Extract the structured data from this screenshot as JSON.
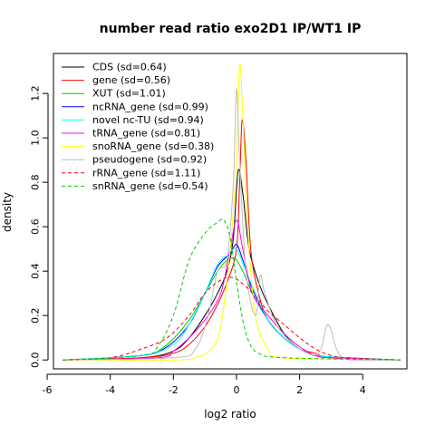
{
  "chart_data": {
    "type": "line",
    "title": "number read ratio exo2D1 IP/WT1 IP",
    "xlabel": "log2 ratio",
    "ylabel": "density",
    "xlim": [
      -5.8,
      5.4
    ],
    "ylim": [
      -0.04,
      1.38
    ],
    "x_ticks": [
      -6,
      -4,
      -2,
      0,
      2,
      4
    ],
    "y_ticks": [
      0.0,
      0.2,
      0.4,
      0.6,
      0.8,
      1.0,
      1.2
    ],
    "legend_position": "top-left",
    "series": [
      {
        "name": "CDS (sd=0.64)",
        "color": "#000000",
        "dash": false,
        "points": [
          [
            -5.5,
            0
          ],
          [
            -3,
            0.01
          ],
          [
            -2,
            0.04
          ],
          [
            -1.5,
            0.1
          ],
          [
            -1,
            0.2
          ],
          [
            -0.6,
            0.3
          ],
          [
            -0.3,
            0.4
          ],
          [
            -0.1,
            0.55
          ],
          [
            0.05,
            0.85
          ],
          [
            0.2,
            0.75
          ],
          [
            0.4,
            0.5
          ],
          [
            0.7,
            0.35
          ],
          [
            1,
            0.25
          ],
          [
            1.5,
            0.12
          ],
          [
            2,
            0.05
          ],
          [
            2.5,
            0.02
          ],
          [
            3,
            0.01
          ],
          [
            5.2,
            0
          ]
        ]
      },
      {
        "name": "gene (sd=0.56)",
        "color": "#ff0000",
        "dash": false,
        "points": [
          [
            -5.5,
            0
          ],
          [
            -3,
            0.01
          ],
          [
            -2,
            0.03
          ],
          [
            -1.5,
            0.07
          ],
          [
            -1,
            0.15
          ],
          [
            -0.6,
            0.25
          ],
          [
            -0.3,
            0.35
          ],
          [
            0,
            0.5
          ],
          [
            0.1,
            0.8
          ],
          [
            0.18,
            1.08
          ],
          [
            0.3,
            0.9
          ],
          [
            0.45,
            0.5
          ],
          [
            0.7,
            0.3
          ],
          [
            1,
            0.18
          ],
          [
            1.5,
            0.1
          ],
          [
            2,
            0.05
          ],
          [
            2.5,
            0.03
          ],
          [
            3,
            0.01
          ],
          [
            5.2,
            0
          ]
        ]
      },
      {
        "name": "XUT (sd=1.01)",
        "color": "#00cc00",
        "dash": false,
        "points": [
          [
            -5.5,
            0
          ],
          [
            -3,
            0.02
          ],
          [
            -2.2,
            0.07
          ],
          [
            -1.5,
            0.18
          ],
          [
            -1,
            0.3
          ],
          [
            -0.5,
            0.42
          ],
          [
            -0.1,
            0.46
          ],
          [
            0.2,
            0.4
          ],
          [
            0.5,
            0.3
          ],
          [
            1,
            0.18
          ],
          [
            1.5,
            0.1
          ],
          [
            2,
            0.05
          ],
          [
            2.5,
            0.02
          ],
          [
            3.5,
            0.01
          ],
          [
            5.2,
            0
          ]
        ]
      },
      {
        "name": "ncRNA_gene (sd=0.99)",
        "color": "#0000ff",
        "dash": false,
        "points": [
          [
            -5.5,
            0
          ],
          [
            -3,
            0.02
          ],
          [
            -2.2,
            0.06
          ],
          [
            -1.5,
            0.16
          ],
          [
            -1,
            0.3
          ],
          [
            -0.6,
            0.42
          ],
          [
            -0.2,
            0.48
          ],
          [
            0,
            0.52
          ],
          [
            0.2,
            0.45
          ],
          [
            0.5,
            0.32
          ],
          [
            1,
            0.18
          ],
          [
            1.5,
            0.1
          ],
          [
            2,
            0.05
          ],
          [
            2.5,
            0.02
          ],
          [
            3.5,
            0.01
          ],
          [
            5.2,
            0
          ]
        ]
      },
      {
        "name": "novel nc-TU (sd=0.94)",
        "color": "#00ffff",
        "dash": false,
        "points": [
          [
            -5.5,
            0
          ],
          [
            -3,
            0.02
          ],
          [
            -2,
            0.07
          ],
          [
            -1.5,
            0.16
          ],
          [
            -1,
            0.3
          ],
          [
            -0.6,
            0.43
          ],
          [
            -0.3,
            0.47
          ],
          [
            0,
            0.5
          ],
          [
            0.3,
            0.4
          ],
          [
            0.6,
            0.3
          ],
          [
            1,
            0.18
          ],
          [
            1.5,
            0.1
          ],
          [
            2,
            0.05
          ],
          [
            2.5,
            0.02
          ],
          [
            3.5,
            0.01
          ],
          [
            5.2,
            0
          ]
        ]
      },
      {
        "name": "tRNA_gene (sd=0.81)",
        "color": "#ff00ff",
        "dash": false,
        "points": [
          [
            -5.5,
            0
          ],
          [
            -2.5,
            0.01
          ],
          [
            -2,
            0.04
          ],
          [
            -1.5,
            0.1
          ],
          [
            -1,
            0.18
          ],
          [
            -0.5,
            0.3
          ],
          [
            -0.2,
            0.5
          ],
          [
            0,
            0.63
          ],
          [
            0.2,
            0.5
          ],
          [
            0.5,
            0.3
          ],
          [
            1,
            0.2
          ],
          [
            1.5,
            0.12
          ],
          [
            2,
            0.06
          ],
          [
            2.5,
            0.02
          ],
          [
            3,
            0.01
          ],
          [
            5.2,
            0
          ]
        ]
      },
      {
        "name": "snoRNA_gene (sd=0.38)",
        "color": "#ffff00",
        "dash": false,
        "points": [
          [
            -5.5,
            0
          ],
          [
            -2,
            0
          ],
          [
            -1.3,
            0.01
          ],
          [
            -0.8,
            0.05
          ],
          [
            -0.5,
            0.15
          ],
          [
            -0.2,
            0.5
          ],
          [
            0,
            0.9
          ],
          [
            0.1,
            1.33
          ],
          [
            0.2,
            1.1
          ],
          [
            0.35,
            0.6
          ],
          [
            0.6,
            0.2
          ],
          [
            1,
            0.05
          ],
          [
            1.5,
            0.01
          ],
          [
            5.2,
            0
          ]
        ]
      },
      {
        "name": "pseudogene (sd=0.92)",
        "color": "#bebebe",
        "dash": false,
        "points": [
          [
            -5.5,
            0
          ],
          [
            -2,
            0.01
          ],
          [
            -1.3,
            0.05
          ],
          [
            -0.9,
            0.2
          ],
          [
            -0.6,
            0.4
          ],
          [
            -0.3,
            0.45
          ],
          [
            -0.1,
            0.8
          ],
          [
            0,
            1.22
          ],
          [
            0.1,
            0.9
          ],
          [
            0.3,
            0.4
          ],
          [
            0.6,
            0.2
          ],
          [
            0.75,
            0.38
          ],
          [
            0.9,
            0.3
          ],
          [
            1.3,
            0.15
          ],
          [
            2,
            0.05
          ],
          [
            2.6,
            0.03
          ],
          [
            2.9,
            0.16
          ],
          [
            3.2,
            0.04
          ],
          [
            3.6,
            0
          ],
          [
            5.2,
            0
          ]
        ]
      },
      {
        "name": "rRNA_gene (sd=1.11)",
        "color": "#ff0000",
        "dash": true,
        "points": [
          [
            -5.5,
            0
          ],
          [
            -4,
            0.01
          ],
          [
            -3,
            0.05
          ],
          [
            -2.2,
            0.1
          ],
          [
            -1.5,
            0.2
          ],
          [
            -1,
            0.3
          ],
          [
            -0.5,
            0.36
          ],
          [
            -0.1,
            0.37
          ],
          [
            0.3,
            0.33
          ],
          [
            0.7,
            0.27
          ],
          [
            1,
            0.22
          ],
          [
            1.5,
            0.16
          ],
          [
            2,
            0.1
          ],
          [
            2.5,
            0.05
          ],
          [
            3,
            0.02
          ],
          [
            3.5,
            0.01
          ],
          [
            5.2,
            0
          ]
        ]
      },
      {
        "name": "snRNA_gene (sd=0.54)",
        "color": "#00cc00",
        "dash": true,
        "points": [
          [
            -5.5,
            0
          ],
          [
            -3,
            0.02
          ],
          [
            -2.5,
            0.06
          ],
          [
            -2,
            0.2
          ],
          [
            -1.5,
            0.45
          ],
          [
            -1,
            0.57
          ],
          [
            -0.6,
            0.62
          ],
          [
            -0.4,
            0.63
          ],
          [
            -0.2,
            0.55
          ],
          [
            0,
            0.35
          ],
          [
            0.2,
            0.18
          ],
          [
            0.4,
            0.08
          ],
          [
            0.7,
            0.03
          ],
          [
            1.5,
            0.01
          ],
          [
            5.2,
            0
          ]
        ]
      }
    ]
  }
}
